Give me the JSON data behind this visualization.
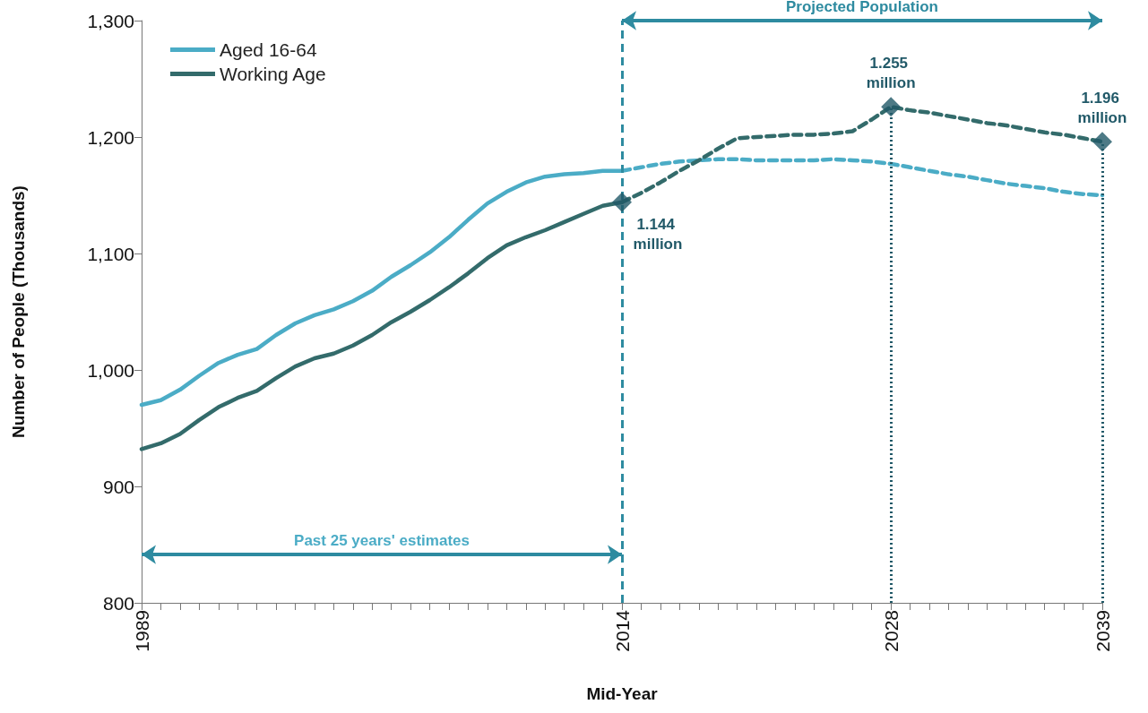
{
  "chart_data": {
    "type": "line",
    "xlabel": "Mid-Year",
    "ylabel": "Number of People (Thousands)",
    "xlim": [
      1989,
      2039
    ],
    "ylim": [
      800,
      1300
    ],
    "xticks": [
      {
        "value": 1989,
        "label": "1989"
      },
      {
        "value": 1990,
        "label": null
      },
      {
        "value": 1991,
        "label": null
      },
      {
        "value": 1992,
        "label": null
      },
      {
        "value": 1993,
        "label": null
      },
      {
        "value": 1994,
        "label": null
      },
      {
        "value": 1995,
        "label": null
      },
      {
        "value": 1996,
        "label": null
      },
      {
        "value": 1997,
        "label": null
      },
      {
        "value": 1998,
        "label": null
      },
      {
        "value": 1999,
        "label": null
      },
      {
        "value": 2000,
        "label": null
      },
      {
        "value": 2001,
        "label": null
      },
      {
        "value": 2002,
        "label": null
      },
      {
        "value": 2003,
        "label": null
      },
      {
        "value": 2004,
        "label": null
      },
      {
        "value": 2005,
        "label": null
      },
      {
        "value": 2006,
        "label": null
      },
      {
        "value": 2007,
        "label": null
      },
      {
        "value": 2008,
        "label": null
      },
      {
        "value": 2009,
        "label": null
      },
      {
        "value": 2010,
        "label": null
      },
      {
        "value": 2011,
        "label": null
      },
      {
        "value": 2012,
        "label": null
      },
      {
        "value": 2013,
        "label": null
      },
      {
        "value": 2014,
        "label": "2014"
      },
      {
        "value": 2015,
        "label": null
      },
      {
        "value": 2016,
        "label": null
      },
      {
        "value": 2017,
        "label": null
      },
      {
        "value": 2018,
        "label": null
      },
      {
        "value": 2019,
        "label": null
      },
      {
        "value": 2020,
        "label": null
      },
      {
        "value": 2021,
        "label": null
      },
      {
        "value": 2022,
        "label": null
      },
      {
        "value": 2023,
        "label": null
      },
      {
        "value": 2024,
        "label": null
      },
      {
        "value": 2025,
        "label": null
      },
      {
        "value": 2026,
        "label": null
      },
      {
        "value": 2027,
        "label": null
      },
      {
        "value": 2028,
        "label": "2028"
      },
      {
        "value": 2029,
        "label": null
      },
      {
        "value": 2030,
        "label": null
      },
      {
        "value": 2031,
        "label": null
      },
      {
        "value": 2032,
        "label": null
      },
      {
        "value": 2033,
        "label": null
      },
      {
        "value": 2034,
        "label": null
      },
      {
        "value": 2035,
        "label": null
      },
      {
        "value": 2036,
        "label": null
      },
      {
        "value": 2037,
        "label": null
      },
      {
        "value": 2038,
        "label": null
      },
      {
        "value": 2039,
        "label": "2039"
      }
    ],
    "yticks": [
      800,
      900,
      {
        "value": 1000,
        "label": "1,000"
      },
      {
        "value": 1100,
        "label": "1,100"
      },
      {
        "value": 1200,
        "label": "1,200"
      },
      {
        "value": 1300,
        "label": "1,300"
      }
    ],
    "grid": false,
    "legend": "top left",
    "marker": "none",
    "series": [
      {
        "name": "Aged 16-64",
        "color": "#4bacc6",
        "line_style": "solid",
        "x": [
          1989,
          1990,
          1991,
          1992,
          1993,
          1994,
          1995,
          1996,
          1997,
          1998,
          1999,
          2000,
          2001,
          2002,
          2003,
          2004,
          2005,
          2006,
          2007,
          2008,
          2009,
          2010,
          2011,
          2012,
          2013,
          2014
        ],
        "values": [
          970,
          974,
          983,
          995,
          1006,
          1013,
          1018,
          1030,
          1040,
          1047,
          1052,
          1059,
          1068,
          1080,
          1090,
          1101,
          1114,
          1129,
          1143,
          1153,
          1161,
          1166,
          1168,
          1169,
          1171,
          1171
        ]
      },
      {
        "name": "Working Age",
        "color": "#336b6b",
        "line_style": "solid",
        "x": [
          1989,
          1990,
          1991,
          1992,
          1993,
          1994,
          1995,
          1996,
          1997,
          1998,
          1999,
          2000,
          2001,
          2002,
          2003,
          2004,
          2005,
          2006,
          2007,
          2008,
          2009,
          2010,
          2011,
          2012,
          2013,
          2014
        ],
        "values": [
          932,
          937,
          945,
          957,
          968,
          976,
          982,
          993,
          1003,
          1010,
          1014,
          1021,
          1030,
          1041,
          1050,
          1060,
          1071,
          1083,
          1096,
          1107,
          1114,
          1120,
          1127,
          1134,
          1141,
          1144
        ]
      },
      {
        "color": "#4bacc6",
        "line_style": "dashed",
        "x": [
          2014,
          2015,
          2016,
          2017,
          2018,
          2019,
          2020,
          2021,
          2022,
          2023,
          2024,
          2025,
          2026,
          2027,
          2028,
          2029,
          2030,
          2031,
          2032,
          2033,
          2034,
          2035,
          2036,
          2037,
          2038,
          2039
        ],
        "values": [
          1171,
          1174,
          1177,
          1179,
          1180,
          1181,
          1181,
          1180,
          1180,
          1180,
          1180,
          1181,
          1180,
          1179,
          1177,
          1174,
          1171,
          1168,
          1166,
          1163,
          1160,
          1158,
          1156,
          1153,
          1151,
          1150
        ]
      },
      {
        "color": "#336b6b",
        "line_style": "dashed",
        "x": [
          2014,
          2015,
          2016,
          2017,
          2018,
          2019,
          2020,
          2021,
          2022,
          2023,
          2024,
          2025,
          2026,
          2027,
          2028,
          2029,
          2030,
          2031,
          2032,
          2033,
          2034,
          2035,
          2036,
          2037,
          2038,
          2039
        ],
        "values": [
          1144,
          1152,
          1161,
          1171,
          1180,
          1190,
          1199,
          1200,
          1201,
          1202,
          1202,
          1203,
          1205,
          1215,
          1226,
          1223,
          1221,
          1218,
          1215,
          1212,
          1210,
          1207,
          1204,
          1202,
          1199,
          1196
        ]
      },
      {
        "type": "scatter",
        "marker": "diamond",
        "color": "#215968",
        "x": [
          2014,
          2028,
          2039
        ],
        "values": [
          1144,
          1226,
          1196
        ]
      }
    ],
    "ref_lines": [
      {
        "axis": "x",
        "value": 2014,
        "color": "#2e8ba0",
        "line_style": "dashed"
      },
      {
        "axis": "x",
        "value": 2028,
        "color": "#215968",
        "line_style": "dotted"
      },
      {
        "axis": "x",
        "value": 2039,
        "color": "#215968",
        "line_style": "dotted"
      }
    ],
    "annotations": [
      "Projected Population",
      "Past 25 years' estimates",
      {
        "text": "1.144 million",
        "x": 2014,
        "y": 1144
      },
      {
        "text": "1.255 million",
        "x": 2028,
        "y": 1226
      },
      {
        "text": "1.196 million",
        "x": 2039,
        "y": 1196
      }
    ]
  }
}
